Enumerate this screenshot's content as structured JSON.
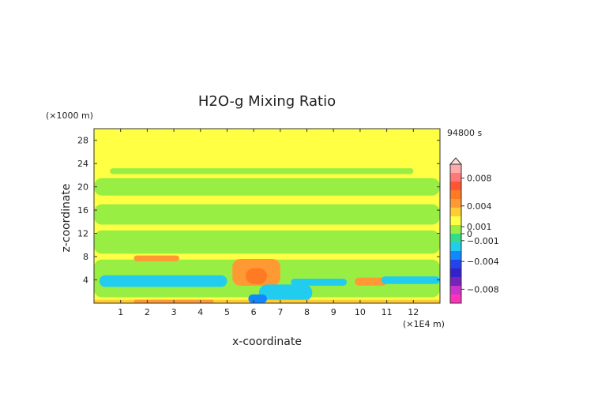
{
  "chart_data": {
    "type": "heatmap",
    "title": "H2O-g Mixing Ratio",
    "xlabel": "x-coordinate",
    "ylabel": "z-coordinate",
    "x_unit_label": "(×1E4 m)",
    "y_unit_label": "(×1000 m)",
    "time_label": "94800 s",
    "xlim": [
      0,
      13
    ],
    "ylim": [
      0,
      30
    ],
    "x_ticks": [
      1,
      2,
      3,
      4,
      5,
      6,
      7,
      8,
      9,
      10,
      11,
      12
    ],
    "y_ticks": [
      4,
      8,
      12,
      16,
      20,
      24,
      28
    ],
    "colorbar": {
      "range": [
        -0.01,
        0.01
      ],
      "tick_values": [
        0.008,
        0.004,
        0.001,
        0,
        -0.001,
        -0.004,
        -0.008
      ],
      "tick_labels": [
        "0.008",
        "0.004",
        "0.001",
        "0",
        "−0.001",
        "−0.004",
        "−0.008"
      ],
      "colors_top_to_bottom": [
        "#ffaaaa",
        "#ff7777",
        "#ff5533",
        "#ff7a22",
        "#ff9933",
        "#ffcc33",
        "#ffff44",
        "#99ee44",
        "#33dd88",
        "#22ccee",
        "#1188ff",
        "#2244ee",
        "#3322cc",
        "#7722bb",
        "#cc33cc",
        "#ff33bb"
      ]
    },
    "field_bands": [
      {
        "value": 0.0,
        "x": [
          0,
          13
        ],
        "z": [
          0,
          30
        ],
        "color": "#ffff44"
      },
      {
        "value": -0.0005,
        "x": [
          0.6,
          12
        ],
        "z": [
          22.2,
          23.2
        ],
        "color": "#99ee44"
      },
      {
        "value": -0.0005,
        "x": [
          0,
          13
        ],
        "z": [
          18.5,
          21.5
        ],
        "color": "#99ee44"
      },
      {
        "value": -0.0005,
        "x": [
          0,
          13
        ],
        "z": [
          13.5,
          17
        ],
        "color": "#99ee44"
      },
      {
        "value": -0.0005,
        "x": [
          0,
          13
        ],
        "z": [
          8.5,
          12.5
        ],
        "color": "#99ee44"
      },
      {
        "value": -0.0005,
        "x": [
          0,
          13
        ],
        "z": [
          1,
          7.5
        ],
        "color": "#99ee44"
      },
      {
        "value": 0.002,
        "x": [
          1.5,
          3.2
        ],
        "z": [
          7.2,
          8.2
        ],
        "color": "#ff9933"
      },
      {
        "value": -0.002,
        "x": [
          0.2,
          5
        ],
        "z": [
          2.8,
          4.8
        ],
        "color": "#22ccee"
      },
      {
        "value": 0.003,
        "x": [
          5.2,
          7
        ],
        "z": [
          3,
          7.6
        ],
        "color": "#ff9933"
      },
      {
        "value": 0.005,
        "x": [
          5.7,
          6.5
        ],
        "z": [
          3.3,
          6
        ],
        "color": "#ff7a22"
      },
      {
        "value": -0.002,
        "x": [
          6.2,
          8.2
        ],
        "z": [
          0.4,
          3.2
        ],
        "color": "#22ccee"
      },
      {
        "value": -0.002,
        "x": [
          7.4,
          9.5
        ],
        "z": [
          3,
          4.2
        ],
        "color": "#22ccee"
      },
      {
        "value": 0.002,
        "x": [
          9.8,
          11
        ],
        "z": [
          3,
          4.4
        ],
        "color": "#ff9933"
      },
      {
        "value": -0.002,
        "x": [
          10.8,
          13
        ],
        "z": [
          3.3,
          4.6
        ],
        "color": "#22ccee"
      },
      {
        "value": 0.001,
        "x": [
          0,
          13
        ],
        "z": [
          0,
          0.6
        ],
        "color": "#ffcc33"
      },
      {
        "value": 0.002,
        "x": [
          1.5,
          4.5
        ],
        "z": [
          0,
          0.6
        ],
        "color": "#ff9933"
      },
      {
        "value": -0.004,
        "x": [
          5.8,
          6.5
        ],
        "z": [
          0,
          1.5
        ],
        "color": "#1188ff"
      }
    ]
  }
}
